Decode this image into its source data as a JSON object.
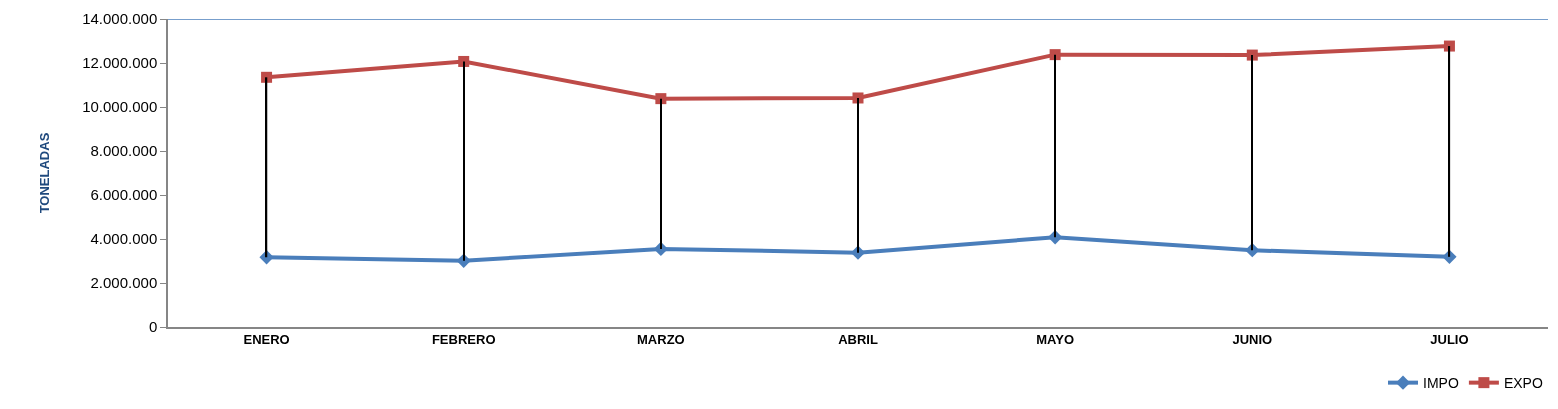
{
  "chart_data": {
    "type": "line",
    "ylabel": "TONELADAS",
    "categories": [
      "ENERO",
      "FEBRERO",
      "MARZO",
      "ABRIL",
      "MAYO",
      "JUNIO",
      "JULIO"
    ],
    "series": [
      {
        "type": "bar",
        "color": "#000000",
        "base": [
          3170000,
          3010000,
          3550000,
          3380000,
          4080000,
          3490000,
          3190000
        ],
        "values": [
          8180000,
          9060000,
          6830000,
          7030000,
          8300000,
          8870000,
          9580000
        ]
      },
      {
        "name": "IMPO",
        "color": "#4a7ebb",
        "marker": "diamond",
        "values": [
          3170000,
          3010000,
          3550000,
          3380000,
          4080000,
          3490000,
          3190000
        ]
      },
      {
        "name": "EXPO",
        "color": "#be4b48",
        "marker": "square",
        "values": [
          11350000,
          12070000,
          10380000,
          10410000,
          12380000,
          12360000,
          12770000
        ]
      }
    ],
    "ylim": [
      0,
      14000000
    ],
    "yticks": [
      {
        "value": 0,
        "label": "0"
      },
      {
        "value": 2000000,
        "label": "2.000.000"
      },
      {
        "value": 4000000,
        "label": "4.000.000"
      },
      {
        "value": 6000000,
        "label": "6.000.000"
      },
      {
        "value": 8000000,
        "label": "8.000.000"
      },
      {
        "value": 10000000,
        "label": "10.000.000"
      },
      {
        "value": 12000000,
        "label": "12.000.000"
      },
      {
        "value": 14000000,
        "label": "14.000.000"
      }
    ],
    "grid": false,
    "legend": "bottom right",
    "line_style": "solid"
  }
}
